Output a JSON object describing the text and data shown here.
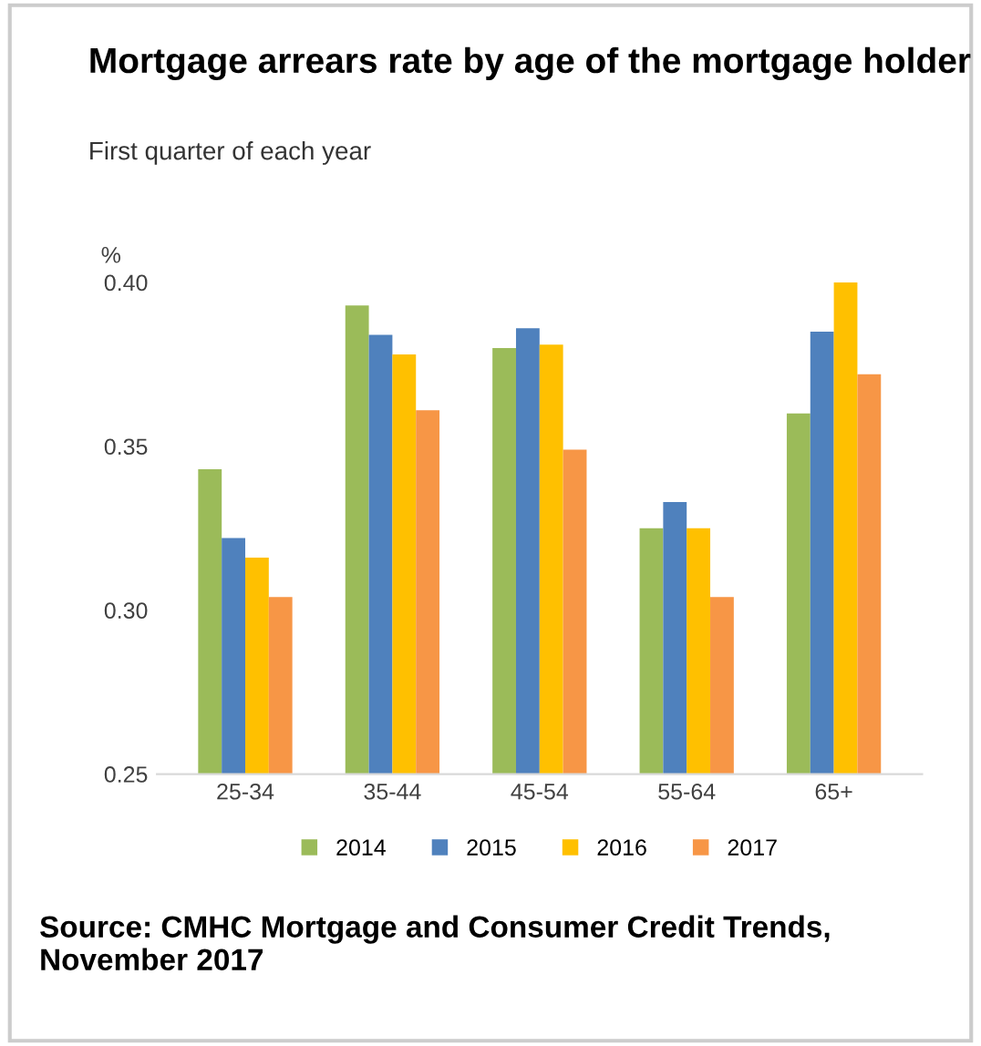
{
  "chart_data": {
    "type": "bar",
    "title": "Mortgage arrears rate by age of the mortgage holder",
    "subtitle": "First quarter of each year",
    "ylabel": "%",
    "categories": [
      "25-34",
      "35-44",
      "45-54",
      "55-64",
      "65+"
    ],
    "series": [
      {
        "name": "2014",
        "color": "#9bbb59",
        "values": [
          0.343,
          0.393,
          0.38,
          0.325,
          0.36
        ]
      },
      {
        "name": "2015",
        "color": "#4f81bd",
        "values": [
          0.322,
          0.384,
          0.386,
          0.333,
          0.385
        ]
      },
      {
        "name": "2016",
        "color": "#ffc000",
        "values": [
          0.316,
          0.378,
          0.381,
          0.325,
          0.4
        ]
      },
      {
        "name": "2017",
        "color": "#f79646",
        "values": [
          0.304,
          0.361,
          0.349,
          0.304,
          0.372
        ]
      }
    ],
    "ylim": [
      0.25,
      0.4
    ],
    "yticks": [
      {
        "value": 0.25,
        "label": "0.25"
      },
      {
        "value": 0.3,
        "label": "0.30"
      },
      {
        "value": 0.35,
        "label": "0.35"
      },
      {
        "value": 0.4,
        "label": "0.40"
      }
    ],
    "grid": false,
    "legend": "bottom",
    "annotations": [
      "Source: CMHC Mortgage and Consumer Credit Trends, November 2017"
    ]
  }
}
